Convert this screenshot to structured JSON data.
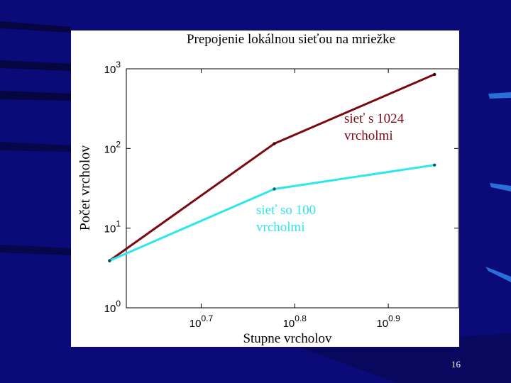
{
  "slide": {
    "number": "16",
    "background_color": "#0a0a78",
    "stripe_color": "#050540",
    "accent_color": "#2a6fd8"
  },
  "chart_data": {
    "type": "line",
    "title": "Prepojenie lokálnou sieťou na mriežke",
    "xlabel": "Stupne vrcholov",
    "ylabel": "Počet vrcholov",
    "x_scale": "log",
    "y_scale": "log",
    "x_log_range": [
      0.62,
      0.975
    ],
    "y_log_range": [
      0,
      3
    ],
    "x_ticks": [
      {
        "base": "10",
        "exp": "0.7",
        "log": 0.7
      },
      {
        "base": "10",
        "exp": "0.8",
        "log": 0.8
      },
      {
        "base": "10",
        "exp": "0.9",
        "log": 0.9
      }
    ],
    "y_ticks": [
      {
        "base": "10",
        "exp": "0",
        "log": 0
      },
      {
        "base": "10",
        "exp": "1",
        "log": 1
      },
      {
        "base": "10",
        "exp": "2",
        "log": 2
      },
      {
        "base": "10",
        "exp": "3",
        "log": 3
      }
    ],
    "grid": false,
    "series": [
      {
        "name": "sieť s 1024 vrcholmi",
        "label_lines": [
          "sieť s 1024",
          "vrcholmi"
        ],
        "color": "#7a0a12",
        "x": [
          4.0,
          6.0,
          8.9
        ],
        "y": [
          3.9,
          115,
          850
        ]
      },
      {
        "name": "sieť so 100 vrcholmi",
        "label_lines": [
          "sieť so 100",
          "vrcholmi"
        ],
        "color": "#2ee6ee",
        "x": [
          4.0,
          6.0,
          8.9
        ],
        "y": [
          3.9,
          31,
          62
        ]
      }
    ]
  }
}
